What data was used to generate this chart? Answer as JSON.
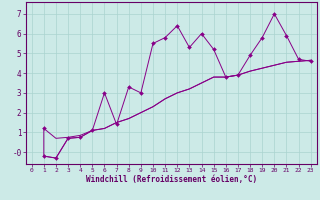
{
  "xlabel": "Windchill (Refroidissement éolien,°C)",
  "background_color": "#cceae7",
  "grid_color": "#aad4d0",
  "line_color": "#880088",
  "spine_color": "#660066",
  "xlim": [
    -0.5,
    23.5
  ],
  "ylim": [
    -0.6,
    7.6
  ],
  "yticks": [
    0,
    1,
    2,
    3,
    4,
    5,
    6,
    7
  ],
  "ytick_labels": [
    "-0",
    "1",
    "2",
    "3",
    "4",
    "5",
    "6",
    "7"
  ],
  "xticks": [
    0,
    1,
    2,
    3,
    4,
    5,
    6,
    7,
    8,
    9,
    10,
    11,
    12,
    13,
    14,
    15,
    16,
    17,
    18,
    19,
    20,
    21,
    22,
    23
  ],
  "line1_x": [
    1,
    1,
    2,
    3,
    4,
    5,
    6,
    7,
    8,
    9,
    10,
    11,
    12,
    13,
    14,
    15,
    16,
    17,
    18,
    19,
    20,
    21,
    22,
    23
  ],
  "line1_y": [
    1.2,
    -0.2,
    -0.3,
    0.7,
    0.75,
    1.1,
    3.0,
    1.4,
    3.3,
    3.0,
    5.5,
    5.8,
    6.4,
    5.3,
    6.0,
    5.2,
    3.8,
    3.9,
    4.9,
    5.8,
    7.0,
    5.9,
    4.7,
    4.6
  ],
  "line2_x": [
    1,
    2,
    3,
    4,
    5,
    6,
    7,
    8,
    9,
    10,
    11,
    12,
    13,
    14,
    15,
    16,
    17,
    18,
    19,
    20,
    21,
    22,
    23
  ],
  "line2_y": [
    -0.2,
    -0.3,
    0.7,
    0.75,
    1.1,
    1.2,
    1.5,
    1.7,
    2.0,
    2.3,
    2.7,
    3.0,
    3.2,
    3.5,
    3.8,
    3.8,
    3.9,
    4.1,
    4.25,
    4.4,
    4.55,
    4.6,
    4.65
  ],
  "line3_x": [
    1,
    2,
    3,
    4,
    5,
    6,
    7,
    8,
    9,
    10,
    11,
    12,
    13,
    14,
    15,
    16,
    17,
    18,
    19,
    20,
    21,
    22,
    23
  ],
  "line3_y": [
    1.2,
    0.7,
    0.75,
    0.85,
    1.1,
    1.2,
    1.5,
    1.7,
    2.0,
    2.3,
    2.7,
    3.0,
    3.2,
    3.5,
    3.8,
    3.8,
    3.9,
    4.1,
    4.25,
    4.4,
    4.55,
    4.6,
    4.65
  ]
}
